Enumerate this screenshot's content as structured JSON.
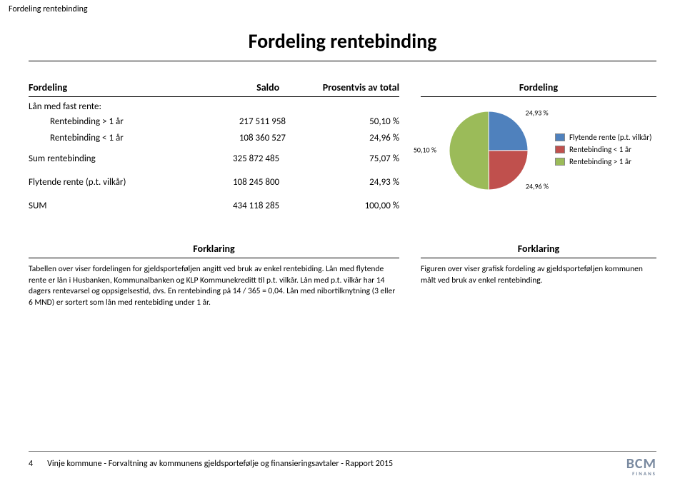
{
  "header": {
    "breadcrumb": "Fordeling rentebinding"
  },
  "title": "Fordeling rentebinding",
  "table": {
    "columns": {
      "c1": "Fordeling",
      "c2": "Saldo",
      "c3": "Prosentvis av total"
    },
    "group1_label": "Lån med fast rente:",
    "rows": [
      {
        "label": "Rentebinding > 1 år",
        "saldo": "217 511 958",
        "pct": "50,10 %"
      },
      {
        "label": "Rentebinding < 1 år",
        "saldo": "108 360 527",
        "pct": "24,96 %"
      }
    ],
    "sum_rentebinding": {
      "label": "Sum rentebinding",
      "saldo": "325 872 485",
      "pct": "75,07 %"
    },
    "flytende": {
      "label": "Flytende rente (p.t. vilkår)",
      "saldo": "108 245 800",
      "pct": "24,93 %"
    },
    "sum": {
      "label": "SUM",
      "saldo": "434 118 285",
      "pct": "100,00 %"
    }
  },
  "chart": {
    "header": "Fordeling",
    "type": "pie",
    "background_color": "#ffffff",
    "slices": [
      {
        "label": "Flytende rente (p.t. vilkår)",
        "value": 24.93,
        "pct_label": "24,93 %",
        "color": "#4f81bd"
      },
      {
        "label": "Rentebinding < 1 år",
        "value": 24.96,
        "pct_label": "24,96 %",
        "color": "#c0504d"
      },
      {
        "label": "Rentebinding > 1 år",
        "value": 50.1,
        "pct_label": "50,10 %",
        "color": "#9bbb59"
      }
    ],
    "radius": 55,
    "label_fontsize": 10,
    "legend_fontsize": 11
  },
  "forklaring": {
    "heading": "Forklaring",
    "left": "Tabellen over viser fordelingen for gjeldsporteføljen angitt ved bruk av enkel rentebiding. Lån med flytende rente er lån i Husbanken, Kommunalbanken og KLP Kommunekreditt til p.t. vilkår. Lån med p.t. vilkår har 14 dagers rentevarsel og oppsigelsestid, dvs. En rentebinding på 14 / 365 = 0,04. Lån med nibortilknytning (3 eller 6 MND) er sortert som lån med rentebiding under 1 år.",
    "right": "Figuren over viser grafisk fordeling av gjeldsporteføljen kommunen målt ved bruk av enkel rentebinding."
  },
  "footer": {
    "page": "4",
    "text": "Vinje kommune - Forvaltning av kommunens gjeldsportefølje og finansieringsavtaler  - Rapport 2015",
    "logo_main": "BCM",
    "logo_sub": "FINANS",
    "logo_color": "#7a8aa0"
  }
}
